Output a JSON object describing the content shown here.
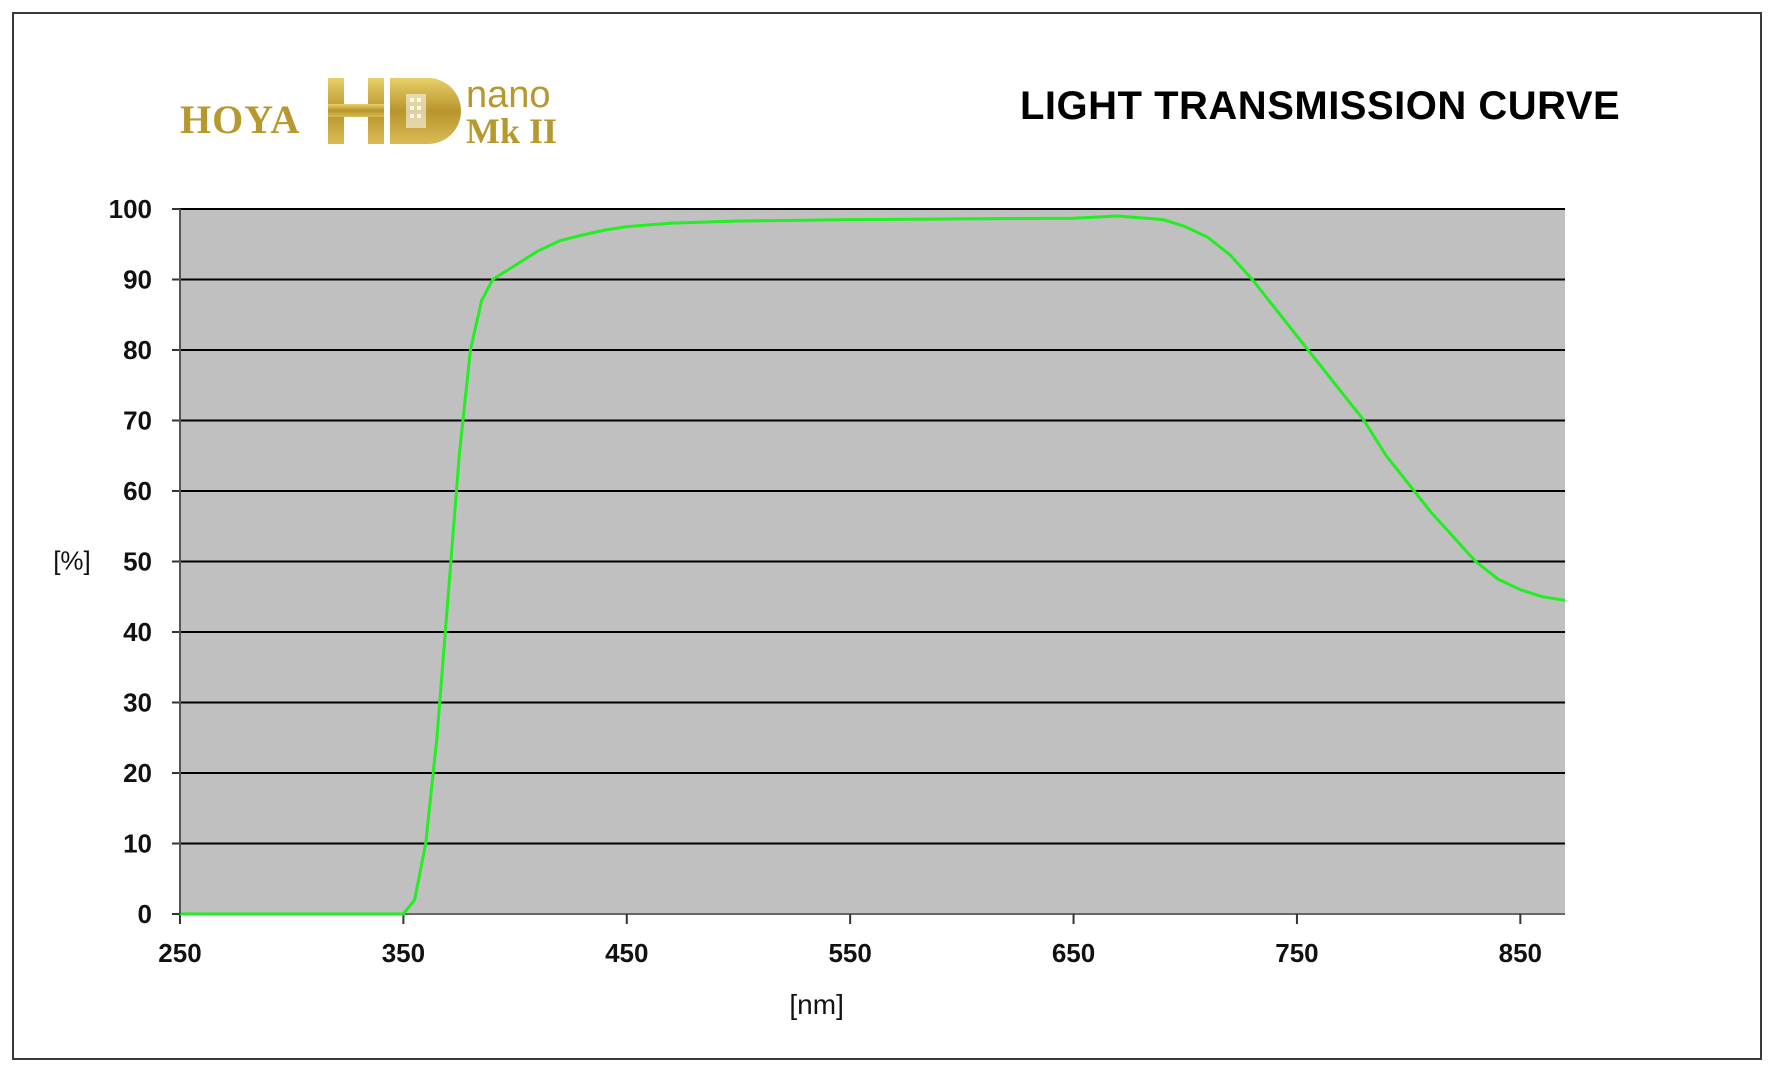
{
  "logo": {
    "brand": "HOYA",
    "mark": "HD",
    "line1": "nano",
    "line2": "Mk II"
  },
  "chart_data": {
    "type": "line",
    "title": "LIGHT TRANSMISSION CURVE",
    "xlabel": "[nm]",
    "ylabel": "[%]",
    "xlim": [
      250,
      870
    ],
    "ylim": [
      0,
      100
    ],
    "xticks": [
      250,
      350,
      450,
      550,
      650,
      750,
      850
    ],
    "yticks": [
      0,
      10,
      20,
      30,
      40,
      50,
      60,
      70,
      80,
      90,
      100
    ],
    "grid": "horizontal",
    "legend": "none",
    "colors": {
      "line": "#22ee22",
      "plot_bg": "#c0c0c0",
      "grid": "#000000"
    },
    "series": [
      {
        "x": [
          250,
          300,
          345,
          350,
          355,
          360,
          365,
          370,
          375,
          380,
          385,
          390,
          395,
          400,
          410,
          420,
          430,
          440,
          450,
          470,
          500,
          550,
          600,
          650,
          670,
          690,
          700,
          710,
          720,
          730,
          740,
          750,
          760,
          770,
          780,
          790,
          800,
          810,
          820,
          830,
          840,
          850,
          860,
          870
        ],
        "y": [
          0,
          0,
          0,
          0,
          2,
          10,
          25,
          45,
          65,
          80,
          87,
          90,
          91,
          92,
          94,
          95.5,
          96.3,
          97,
          97.5,
          98,
          98.3,
          98.5,
          98.6,
          98.7,
          99,
          98.5,
          97.5,
          96,
          93.5,
          90,
          86,
          82,
          78,
          74,
          70,
          65,
          61,
          57,
          53.5,
          50,
          47.5,
          46,
          45,
          44.5
        ]
      }
    ]
  }
}
